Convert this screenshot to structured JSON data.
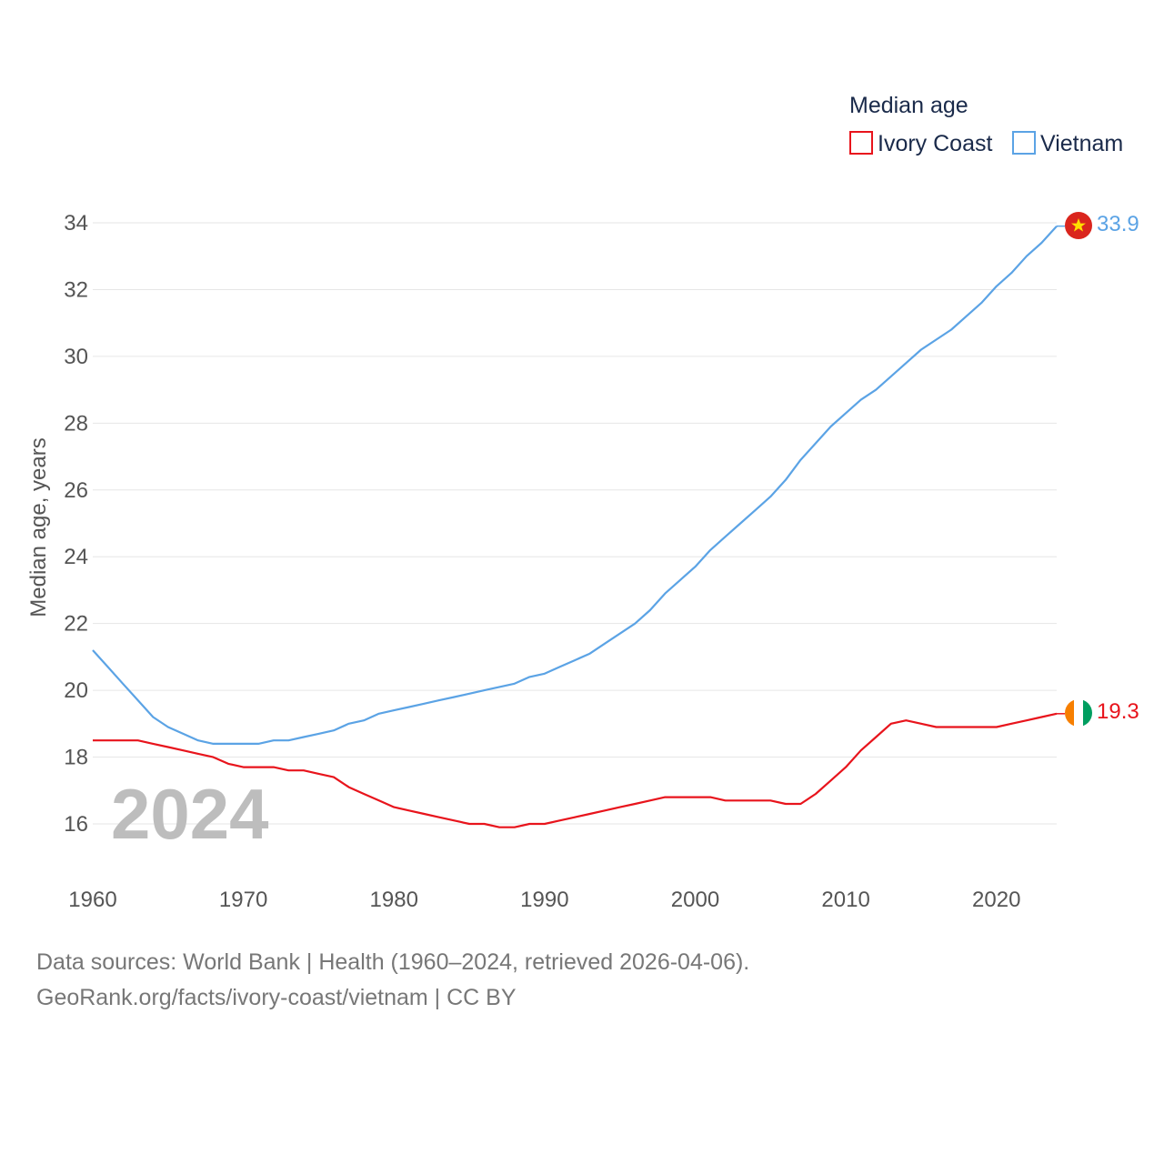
{
  "chart_data": {
    "type": "line",
    "title": "Median age",
    "ylabel": "Median age, years",
    "xlabel": "",
    "xlim": [
      1960,
      2024
    ],
    "ylim": [
      15,
      34.5
    ],
    "x_ticks": [
      1960,
      1970,
      1980,
      1990,
      2000,
      2010,
      2020
    ],
    "y_ticks": [
      16,
      18,
      20,
      22,
      24,
      26,
      28,
      30,
      32,
      34
    ],
    "grid": true,
    "legend_position": "top-right",
    "current_year": "2024",
    "x": [
      1960,
      1961,
      1962,
      1963,
      1964,
      1965,
      1966,
      1967,
      1968,
      1969,
      1970,
      1971,
      1972,
      1973,
      1974,
      1975,
      1976,
      1977,
      1978,
      1979,
      1980,
      1981,
      1982,
      1983,
      1984,
      1985,
      1986,
      1987,
      1988,
      1989,
      1990,
      1991,
      1992,
      1993,
      1994,
      1995,
      1996,
      1997,
      1998,
      1999,
      2000,
      2001,
      2002,
      2003,
      2004,
      2005,
      2006,
      2007,
      2008,
      2009,
      2010,
      2011,
      2012,
      2013,
      2014,
      2015,
      2016,
      2017,
      2018,
      2019,
      2020,
      2021,
      2022,
      2023,
      2024
    ],
    "series": [
      {
        "name": "Ivory Coast",
        "color": "#e8141c",
        "end_label": "19.3",
        "flag": "ivory-coast",
        "values": [
          18.5,
          18.5,
          18.5,
          18.5,
          18.4,
          18.3,
          18.2,
          18.1,
          18.0,
          17.8,
          17.7,
          17.7,
          17.7,
          17.6,
          17.6,
          17.5,
          17.4,
          17.1,
          16.9,
          16.7,
          16.5,
          16.4,
          16.3,
          16.2,
          16.1,
          16.0,
          16.0,
          15.9,
          15.9,
          16.0,
          16.0,
          16.1,
          16.2,
          16.3,
          16.4,
          16.5,
          16.6,
          16.7,
          16.8,
          16.8,
          16.8,
          16.8,
          16.7,
          16.7,
          16.7,
          16.7,
          16.6,
          16.6,
          16.9,
          17.3,
          17.7,
          18.2,
          18.6,
          19.0,
          19.1,
          19.0,
          18.9,
          18.9,
          18.9,
          18.9,
          18.9,
          19.0,
          19.1,
          19.2,
          19.3
        ]
      },
      {
        "name": "Vietnam",
        "color": "#5ba3e5",
        "end_label": "33.9",
        "flag": "vietnam",
        "values": [
          21.2,
          20.7,
          20.2,
          19.7,
          19.2,
          18.9,
          18.7,
          18.5,
          18.4,
          18.4,
          18.4,
          18.4,
          18.5,
          18.5,
          18.6,
          18.7,
          18.8,
          19.0,
          19.1,
          19.3,
          19.4,
          19.5,
          19.6,
          19.7,
          19.8,
          19.9,
          20.0,
          20.1,
          20.2,
          20.4,
          20.5,
          20.7,
          20.9,
          21.1,
          21.4,
          21.7,
          22.0,
          22.4,
          22.9,
          23.3,
          23.7,
          24.2,
          24.6,
          25.0,
          25.4,
          25.8,
          26.3,
          26.9,
          27.4,
          27.9,
          28.3,
          28.7,
          29.0,
          29.4,
          29.8,
          30.2,
          30.5,
          30.8,
          31.2,
          31.6,
          32.1,
          32.5,
          33.0,
          33.4,
          33.9
        ]
      }
    ]
  },
  "footer": {
    "line1": "Data sources: World Bank | Health (1960–2024, retrieved 2026-04-06).",
    "line2": "GeoRank.org/facts/ivory-coast/vietnam | CC BY"
  }
}
